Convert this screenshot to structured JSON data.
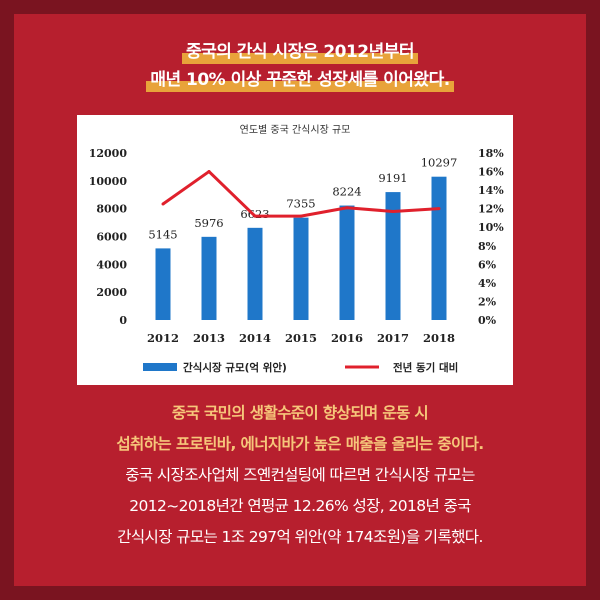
{
  "headline": {
    "lines": [
      "중국의 간식 시장은 2012년부터",
      "매년 10% 이상 꾸준한 성장세를 이어왔다."
    ]
  },
  "chart_data": {
    "type": "bar",
    "title": "연도별 중국 간식시장 규모",
    "categories": [
      "2012",
      "2013",
      "2014",
      "2015",
      "2016",
      "2017",
      "2018"
    ],
    "series": [
      {
        "name": "간식시장 규모(억 위안)",
        "type": "bar",
        "axis": "left",
        "color": "#1f77c9",
        "values": [
          5145,
          5976,
          6623,
          7355,
          8224,
          9191,
          10297
        ]
      },
      {
        "name": "전년 동기 대비",
        "type": "line",
        "axis": "right",
        "color": "#e0202c",
        "values": [
          12.5,
          16.0,
          11.2,
          11.2,
          12.1,
          11.7,
          12.0
        ]
      }
    ],
    "left_axis": {
      "ticks": [
        "0",
        "2000",
        "4000",
        "6000",
        "8000",
        "10000",
        "12000"
      ],
      "ylim": [
        0,
        12000
      ]
    },
    "right_axis": {
      "ticks": [
        "0%",
        "2%",
        "4%",
        "6%",
        "8%",
        "10%",
        "12%",
        "14%",
        "16%",
        "18%"
      ],
      "ylim": [
        0,
        18
      ]
    },
    "bar_labels": [
      "5145",
      "5976",
      "6623",
      "7355",
      "8224",
      "9191",
      "10297"
    ],
    "legend": {
      "bar_label": "간식시장 규모(억 위안)",
      "line_label": "전년 동기 대비",
      "placement": "bottom"
    }
  },
  "body": {
    "line1": "중국 국민의 생활수준이 향상되며 운동 시",
    "line2": "섭취하는 프로틴바, 에너지바가 높은 매출을 올리는 중이다.",
    "line3": "중국 시장조사업체 즈옌컨설팅에 따르면 간식시장 규모는",
    "line4": "2012~2018년간 연평균 12.26% 성장, 2018년 중국",
    "line5": "간식시장 규모는 1조 297억 위안(약 174조원)을 기록했다."
  }
}
